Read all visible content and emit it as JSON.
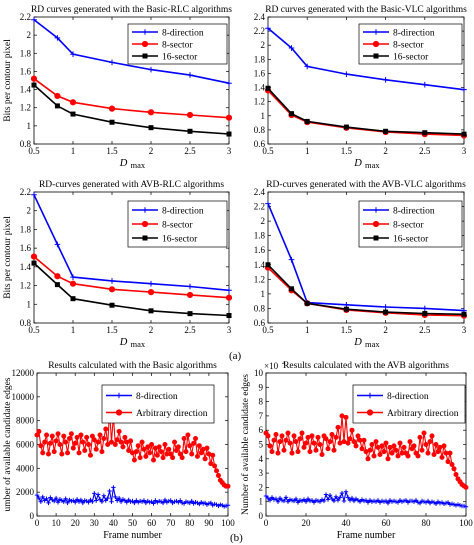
{
  "panel_labels": {
    "a": "(a)",
    "b": "(b)"
  },
  "chart_data": [
    {
      "type": "line",
      "title": "RD curves generated with the Basic-RLC algorithms",
      "xlabel": "D",
      "xlabel_sub": "max",
      "ylabel": "Bits per contour pixel",
      "xlim": [
        0.5,
        3
      ],
      "ylim": [
        0.8,
        2.2
      ],
      "xticks": [
        "0.5",
        "1",
        "1.5",
        "2",
        "2.5",
        "3"
      ],
      "yticks": [
        "0.8",
        "1",
        "1.2",
        "1.4",
        "1.6",
        "1.8",
        "2",
        "2.2"
      ],
      "xtick_values": [
        0.5,
        1,
        1.5,
        2,
        2.5,
        3
      ],
      "ytick_values": [
        0.8,
        1,
        1.2,
        1.4,
        1.6,
        1.8,
        2,
        2.2
      ],
      "x": [
        0.5,
        0.8,
        1.0,
        1.5,
        2.0,
        2.5,
        3.0
      ],
      "legend_position": "top-right",
      "grid": false,
      "series": [
        {
          "name": "8-direction",
          "color": "#0000ff",
          "marker": "plus",
          "values": [
            2.17,
            1.97,
            1.79,
            1.7,
            1.62,
            1.56,
            1.47
          ]
        },
        {
          "name": "8-sector",
          "color": "#ff0000",
          "marker": "circle",
          "values": [
            1.52,
            1.33,
            1.26,
            1.19,
            1.15,
            1.12,
            1.09
          ]
        },
        {
          "name": "16-sector",
          "color": "#000000",
          "marker": "square",
          "values": [
            1.45,
            1.22,
            1.13,
            1.04,
            0.98,
            0.94,
            0.91
          ]
        }
      ]
    },
    {
      "type": "line",
      "title": "RD curves generated with the Basic-VLC algorithms",
      "xlabel": "D",
      "xlabel_sub": "max",
      "ylabel": "",
      "xlim": [
        0.5,
        3
      ],
      "ylim": [
        0.6,
        2.4
      ],
      "xticks": [
        "0.5",
        "1",
        "1.5",
        "2",
        "2.5",
        "3"
      ],
      "yticks": [
        "0.6",
        "0.8",
        "1",
        "1.2",
        "1.4",
        "1.6",
        "1.8",
        "2",
        "2.2",
        "2.4"
      ],
      "xtick_values": [
        0.5,
        1,
        1.5,
        2,
        2.5,
        3
      ],
      "ytick_values": [
        0.6,
        0.8,
        1,
        1.2,
        1.4,
        1.6,
        1.8,
        2,
        2.2,
        2.4
      ],
      "x": [
        0.5,
        0.8,
        1.0,
        1.5,
        2.0,
        2.5,
        3.0
      ],
      "legend_position": "top-right",
      "grid": false,
      "series": [
        {
          "name": "8-direction",
          "color": "#0000ff",
          "marker": "plus",
          "values": [
            2.24,
            1.96,
            1.7,
            1.59,
            1.51,
            1.44,
            1.37
          ]
        },
        {
          "name": "8-sector",
          "color": "#ff0000",
          "marker": "circle",
          "values": [
            1.36,
            1.01,
            0.91,
            0.83,
            0.77,
            0.74,
            0.72
          ]
        },
        {
          "name": "16-sector",
          "color": "#000000",
          "marker": "square",
          "values": [
            1.39,
            1.03,
            0.92,
            0.84,
            0.78,
            0.76,
            0.74
          ]
        }
      ]
    },
    {
      "type": "line",
      "title": "RD-curves generated with AVB-RLC algorithms",
      "xlabel": "D",
      "xlabel_sub": "max",
      "ylabel": "Bits per contour pixel",
      "xlim": [
        0.5,
        3
      ],
      "ylim": [
        0.8,
        2.2
      ],
      "xticks": [
        "0.5",
        "1",
        "1.5",
        "2",
        "2.5",
        "3"
      ],
      "yticks": [
        "0.8",
        "1",
        "1.2",
        "1.4",
        "1.6",
        "1.8",
        "2",
        "2.2"
      ],
      "xtick_values": [
        0.5,
        1,
        1.5,
        2,
        2.5,
        3
      ],
      "ytick_values": [
        0.8,
        1,
        1.2,
        1.4,
        1.6,
        1.8,
        2,
        2.2
      ],
      "x": [
        0.5,
        0.8,
        1.0,
        1.5,
        2.0,
        2.5,
        3.0
      ],
      "legend_position": "top-right",
      "grid": false,
      "series": [
        {
          "name": "8-direction",
          "color": "#0000ff",
          "marker": "plus",
          "values": [
            2.17,
            1.64,
            1.29,
            1.25,
            1.22,
            1.19,
            1.15
          ]
        },
        {
          "name": "8-sector",
          "color": "#ff0000",
          "marker": "circle",
          "values": [
            1.51,
            1.3,
            1.22,
            1.16,
            1.13,
            1.1,
            1.07
          ]
        },
        {
          "name": "16-sector",
          "color": "#000000",
          "marker": "square",
          "values": [
            1.44,
            1.21,
            1.06,
            0.99,
            0.93,
            0.9,
            0.88
          ]
        }
      ]
    },
    {
      "type": "line",
      "title": "RD-curves generated with the AVB-VLC algorithms",
      "xlabel": "D",
      "xlabel_sub": "max",
      "ylabel": "",
      "xlim": [
        0.5,
        3
      ],
      "ylim": [
        0.6,
        2.4
      ],
      "xticks": [
        "0.5",
        "1",
        "1.5",
        "2",
        "2.5",
        "3"
      ],
      "yticks": [
        "0.6",
        "0.8",
        "1",
        "1.2",
        "1.4",
        "1.6",
        "1.8",
        "2",
        "2.2",
        "2.4"
      ],
      "xtick_values": [
        0.5,
        1,
        1.5,
        2,
        2.5,
        3
      ],
      "ytick_values": [
        0.6,
        0.8,
        1,
        1.2,
        1.4,
        1.6,
        1.8,
        2,
        2.2,
        2.4
      ],
      "x": [
        0.5,
        0.8,
        1.0,
        1.5,
        2.0,
        2.5,
        3.0
      ],
      "legend_position": "top-right",
      "grid": false,
      "series": [
        {
          "name": "8-direction",
          "color": "#0000ff",
          "marker": "plus",
          "values": [
            2.24,
            1.47,
            0.88,
            0.85,
            0.82,
            0.8,
            0.77
          ]
        },
        {
          "name": "8-sector",
          "color": "#ff0000",
          "marker": "circle",
          "values": [
            1.36,
            1.05,
            0.87,
            0.78,
            0.74,
            0.71,
            0.7
          ]
        },
        {
          "name": "16-sector",
          "color": "#000000",
          "marker": "square",
          "values": [
            1.4,
            1.07,
            0.87,
            0.79,
            0.75,
            0.73,
            0.72
          ]
        }
      ]
    },
    {
      "type": "line",
      "title": "Results calculated with the Basic algorithms",
      "xlabel": "Frame number",
      "ylabel": "umber of available candidate edges",
      "xlim": [
        0,
        100
      ],
      "ylim": [
        0,
        12000
      ],
      "xticks": [
        "0",
        "10",
        "20",
        "30",
        "40",
        "50",
        "60",
        "70",
        "80",
        "90",
        "100"
      ],
      "yticks": [
        "0",
        "2000",
        "4000",
        "6000",
        "8000",
        "10000",
        "12000"
      ],
      "xtick_values": [
        0,
        10,
        20,
        30,
        40,
        50,
        60,
        70,
        80,
        90,
        100
      ],
      "ytick_values": [
        0,
        2000,
        4000,
        6000,
        8000,
        10000,
        12000
      ],
      "legend_position": "top-center",
      "grid": false,
      "series": [
        {
          "name": "8-direction",
          "color": "#0000ff",
          "marker": "plus",
          "values": [
            1750,
            1500,
            1200,
            1600,
            1300,
            1450,
            1100,
            1550,
            1350,
            1250,
            1500,
            1150,
            1400,
            1300,
            1200,
            1450,
            1100,
            1350,
            1250,
            1300,
            1150,
            1400,
            1200,
            1350,
            1100,
            1300,
            1250,
            1150,
            1350,
            1200,
            1900,
            1300,
            1800,
            1400,
            1200,
            1700,
            1300,
            1500,
            2100,
            1200,
            2400,
            1600,
            1300,
            1500,
            1200,
            1400,
            1300,
            1150,
            1350,
            1200,
            1250,
            1100,
            1300,
            1150,
            1250,
            1200,
            1300,
            1100,
            1250,
            1150,
            1200,
            1050,
            1300,
            1150,
            1250,
            1200,
            1100,
            1350,
            1150,
            1250,
            1300,
            1100,
            1200,
            1250,
            1150,
            1300,
            1100,
            1050,
            1200,
            1150,
            1100,
            1250,
            1050,
            1150,
            1100,
            1000,
            1150,
            1050,
            1100,
            950,
            1050,
            1100,
            900,
            1000,
            950,
            850,
            950,
            900,
            800,
            850,
            900
          ]
        },
        {
          "name": "Arbitrary direction",
          "color": "#ff0000",
          "marker": "circle",
          "values": [
            6800,
            7100,
            5900,
            5300,
            6200,
            6800,
            5200,
            6100,
            6700,
            5400,
            6300,
            6900,
            6000,
            5200,
            6700,
            6200,
            5300,
            6500,
            6900,
            5700,
            6100,
            6600,
            5300,
            6800,
            6200,
            5500,
            6600,
            6000,
            5100,
            6700,
            6400,
            5600,
            6200,
            6800,
            5400,
            6500,
            7300,
            6000,
            8800,
            6200,
            8400,
            6000,
            6400,
            7100,
            6200,
            5800,
            6600,
            6200,
            5500,
            6300,
            5300,
            4700,
            5400,
            5900,
            4900,
            6200,
            5600,
            5000,
            5800,
            5300,
            6000,
            4700,
            5700,
            5100,
            5800,
            5400,
            4900,
            6000,
            5200,
            5600,
            5200,
            4900,
            6200,
            5500,
            5800,
            5200,
            4900,
            6500,
            5400,
            6800,
            5900,
            5200,
            6100,
            6500,
            5000,
            5900,
            5300,
            5600,
            4800,
            5700,
            5200,
            4400,
            5100,
            4200,
            3800,
            3400,
            3000,
            2800,
            2600,
            2500,
            2500
          ]
        }
      ]
    },
    {
      "type": "line",
      "title": "Results calculated with the AVB algorithms",
      "xlabel": "Frame number",
      "ylabel": "Number of available candidate edges",
      "y_exponent": "×10",
      "y_exponent_power": "4",
      "xlim": [
        0,
        100
      ],
      "ylim": [
        0,
        10000
      ],
      "xticks": [
        "0",
        "20",
        "40",
        "60",
        "80",
        "100"
      ],
      "yticks": [
        "0",
        "1",
        "2",
        "3",
        "4",
        "5",
        "6",
        "7",
        "8",
        "9",
        "10"
      ],
      "xtick_values": [
        0,
        20,
        40,
        60,
        80,
        100
      ],
      "ytick_values": [
        0,
        1000,
        2000,
        3000,
        4000,
        5000,
        6000,
        7000,
        8000,
        9000,
        10000
      ],
      "legend_position": "top-right",
      "grid": false,
      "series": [
        {
          "name": "8-direction",
          "color": "#0000ff",
          "marker": "plus",
          "values": [
            1400,
            1250,
            1100,
            1300,
            1150,
            1200,
            1000,
            1250,
            1100,
            1050,
            1300,
            1000,
            1150,
            1100,
            1050,
            1200,
            950,
            1100,
            1050,
            1150,
            1000,
            1200,
            1050,
            1100,
            950,
            1100,
            1050,
            1000,
            1150,
            1050,
            1500,
            1150,
            1450,
            1200,
            1050,
            1350,
            1100,
            1300,
            1600,
            1050,
            1700,
            1300,
            1100,
            1250,
            1050,
            1200,
            1100,
            1000,
            1150,
            1050,
            1100,
            950,
            1100,
            1000,
            1050,
            1000,
            1100,
            950,
            1050,
            1000,
            1050,
            900,
            1100,
            1000,
            1050,
            1000,
            950,
            1100,
            1000,
            1050,
            1100,
            950,
            1050,
            1050,
            1000,
            1100,
            950,
            900,
            1050,
            1000,
            950,
            1050,
            900,
            1000,
            950,
            850,
            1000,
            900,
            950,
            850,
            900,
            950,
            800,
            850,
            800,
            750,
            800,
            750,
            700,
            700,
            650
          ]
        },
        {
          "name": "Arbitrary direction",
          "color": "#ff0000",
          "marker": "circle",
          "values": [
            5800,
            5600,
            4900,
            4500,
            5300,
            5700,
            4400,
            5200,
            5600,
            4600,
            5300,
            5800,
            5100,
            4400,
            5600,
            5200,
            4500,
            5400,
            5800,
            4800,
            5100,
            5500,
            4500,
            5600,
            5100,
            4600,
            5500,
            5000,
            4300,
            5600,
            5400,
            4700,
            5200,
            5700,
            4600,
            5500,
            6200,
            5100,
            7000,
            5200,
            6900,
            5100,
            5400,
            6000,
            5200,
            4900,
            5600,
            5300,
            4700,
            5300,
            4500,
            4000,
            4600,
            5000,
            4200,
            5200,
            4800,
            4300,
            4900,
            4500,
            5100,
            4000,
            4800,
            4400,
            4900,
            4600,
            4200,
            5100,
            4400,
            4800,
            4400,
            4200,
            5200,
            4700,
            4900,
            4400,
            4200,
            5500,
            4600,
            5800,
            5000,
            4400,
            5200,
            5600,
            4300,
            5000,
            4500,
            4800,
            4100,
            4900,
            4400,
            3800,
            4400,
            3600,
            3300,
            2900,
            2600,
            2400,
            2200,
            2100,
            2000
          ]
        }
      ]
    }
  ]
}
